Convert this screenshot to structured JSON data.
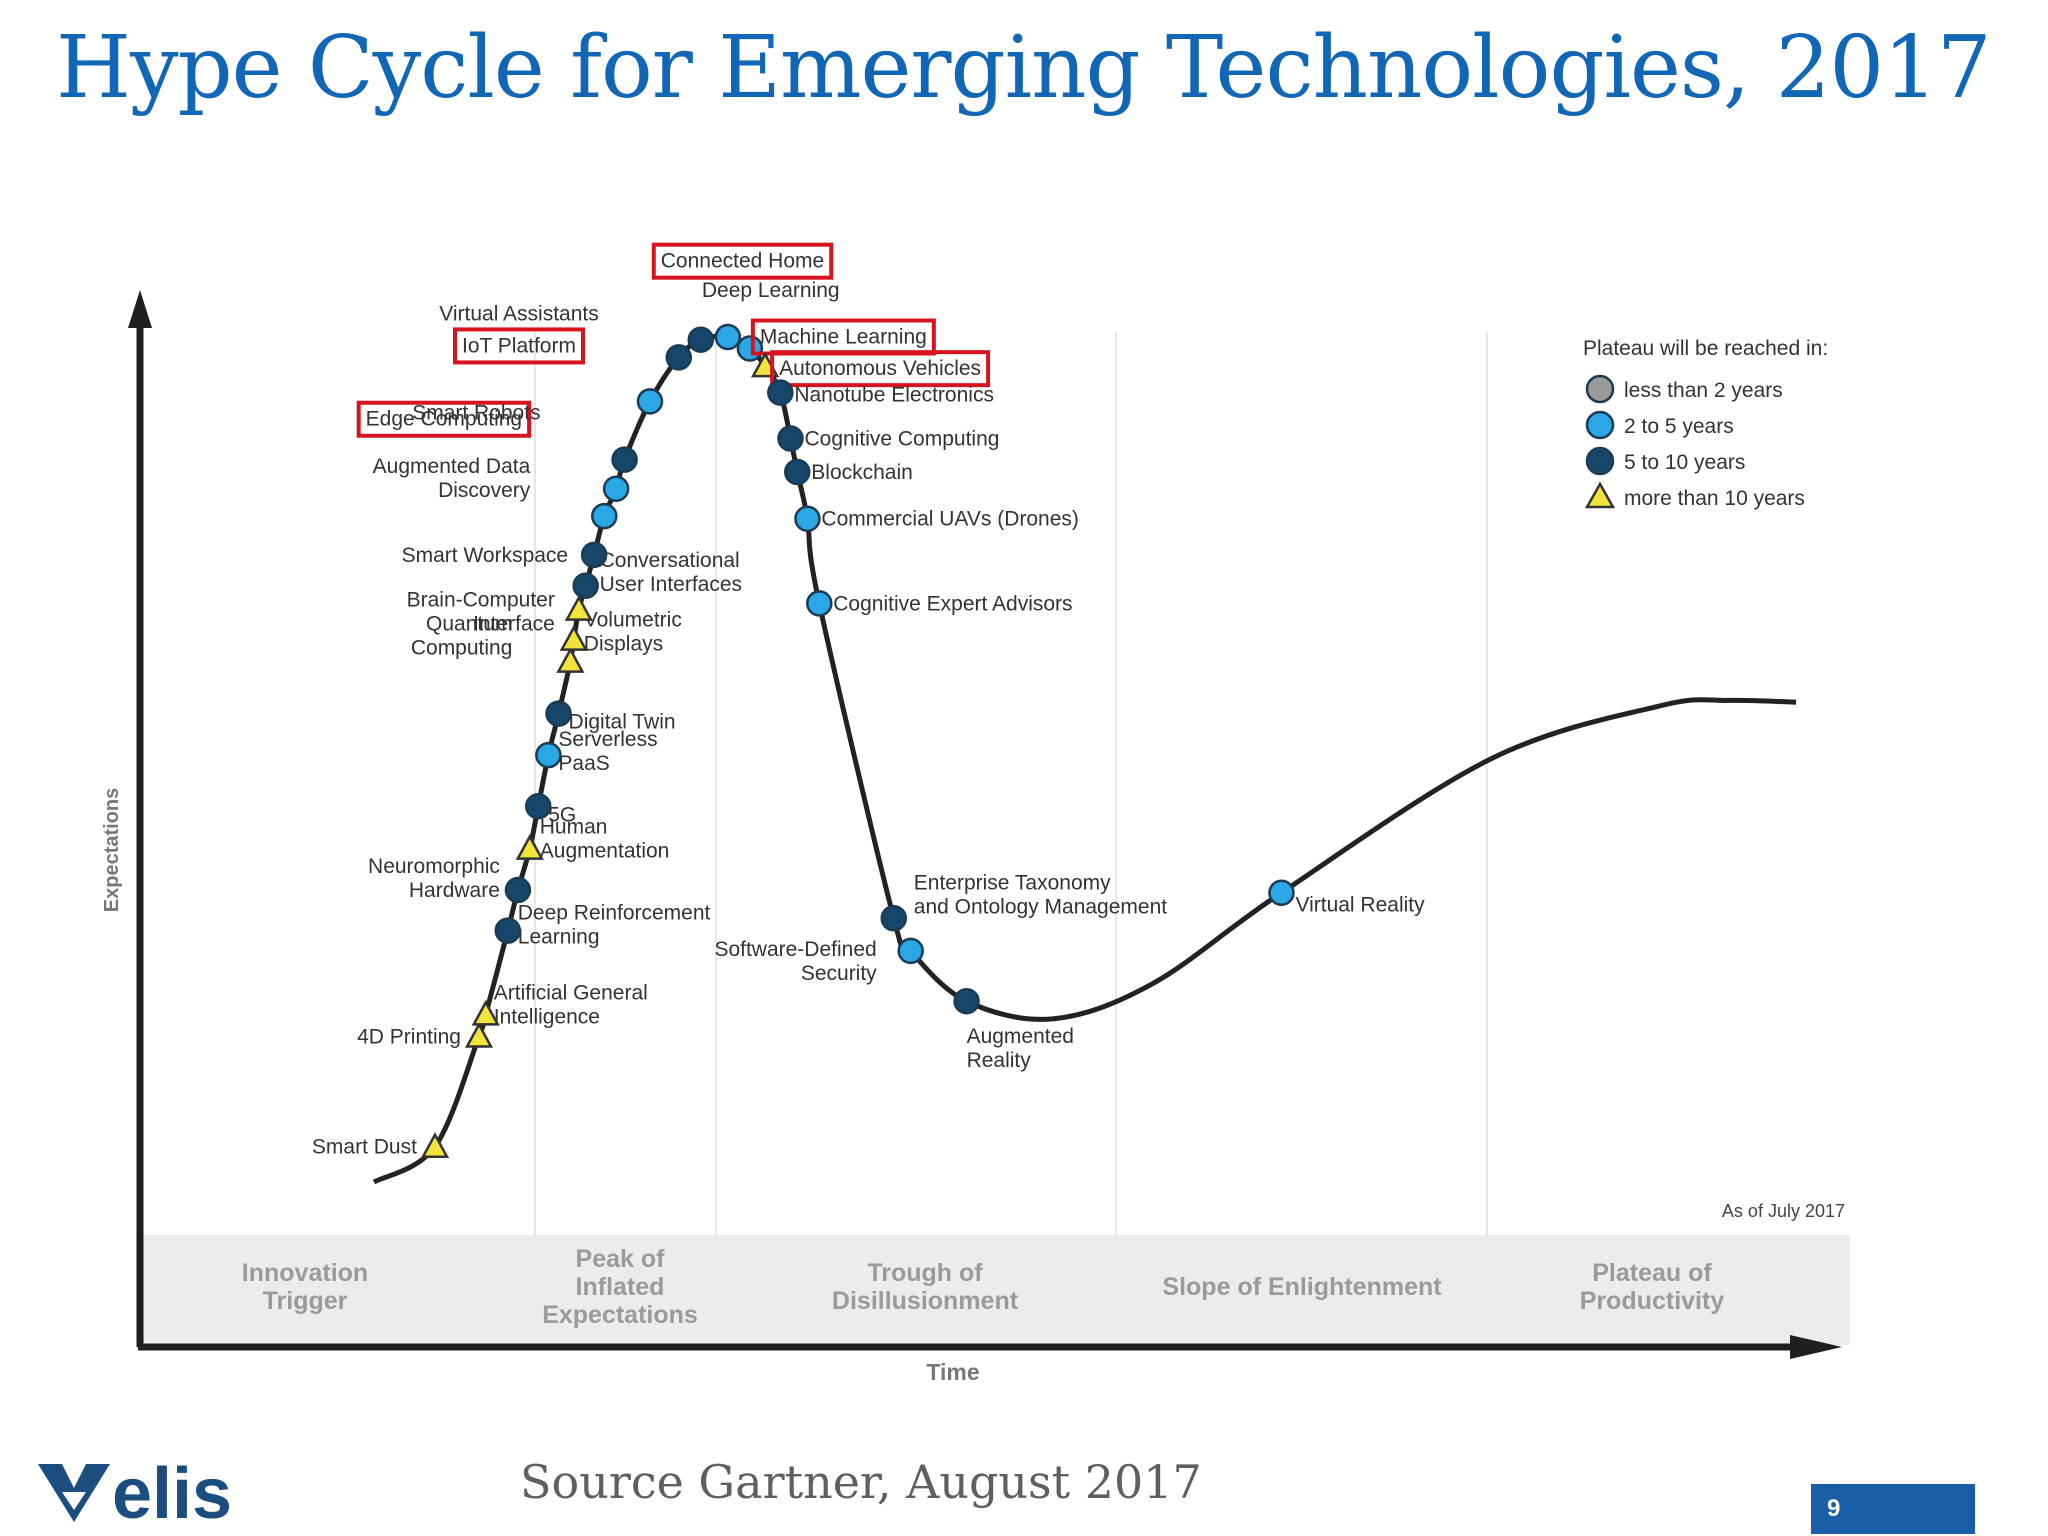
{
  "slide_title": "Hype Cycle for Emerging Technologies, 2017",
  "source_note": "Source Gartner, August 2017",
  "page_number": "9",
  "logo_text": "elis",
  "colors": {
    "title": "#1166b5",
    "highlight_box": "#d7141d",
    "lt2": "#9b9b9b",
    "y2to5": "#2ba7e6",
    "y5to10": "#16476b",
    "gt10": "#f3e43c"
  },
  "chart_data": {
    "type": "scatter",
    "xlabel": "Time",
    "ylabel": "Expectations",
    "note": "As of July 2017",
    "phases": [
      [
        "Innovation",
        "Trigger"
      ],
      [
        "Peak of",
        "Inflated",
        "Expectations"
      ],
      [
        "Trough of",
        "Disillusionment"
      ],
      [
        "Slope of Enlightenment"
      ],
      [
        "Plateau of",
        "Productivity"
      ]
    ],
    "legend": {
      "title": "Plateau will be reached in:",
      "items": [
        {
          "key": "lt2",
          "label": "less than 2 years"
        },
        {
          "key": "y2to5",
          "label": "2 to 5 years"
        },
        {
          "key": "y5to10",
          "label": "5 to 10 years"
        },
        {
          "key": "gt10",
          "label": "more than 10 years"
        }
      ]
    },
    "technologies": [
      {
        "name": "Smart Dust",
        "label_lines": [
          "Smart Dust"
        ],
        "x": 0.176,
        "y": 0.04,
        "category": "gt10"
      },
      {
        "name": "4D Printing",
        "label_lines": [
          "4D Printing"
        ],
        "x": 0.202,
        "y": 0.165,
        "category": "gt10"
      },
      {
        "name": "Artificial General Intelligence",
        "label_lines": [
          "Artificial General",
          "Intelligence"
        ],
        "x": 0.206,
        "y": 0.19,
        "category": "gt10"
      },
      {
        "name": "Deep Reinforcement Learning",
        "label_lines": [
          "Deep Reinforcement",
          "Learning"
        ],
        "x": 0.219,
        "y": 0.285,
        "category": "y5to10"
      },
      {
        "name": "Neuromorphic Hardware",
        "label_lines": [
          "Neuromorphic",
          "Hardware"
        ],
        "x": 0.225,
        "y": 0.331,
        "category": "y5to10"
      },
      {
        "name": "Human Augmentation",
        "label_lines": [
          "Human",
          "Augmentation"
        ],
        "x": 0.232,
        "y": 0.378,
        "category": "gt10"
      },
      {
        "name": "5G",
        "label_lines": [
          "5G"
        ],
        "x": 0.237,
        "y": 0.426,
        "category": "y5to10"
      },
      {
        "name": "Serverless PaaS",
        "label_lines": [
          "Serverless",
          "PaaS"
        ],
        "x": 0.243,
        "y": 0.484,
        "category": "y2to5"
      },
      {
        "name": "Digital Twin",
        "label_lines": [
          "Digital Twin"
        ],
        "x": 0.249,
        "y": 0.531,
        "category": "y5to10"
      },
      {
        "name": "Quantum Computing",
        "label_lines": [
          "Quantum",
          "Computing"
        ],
        "x": 0.256,
        "y": 0.59,
        "category": "gt10"
      },
      {
        "name": "Volumetric Displays",
        "label_lines": [
          "Volumetric",
          "Displays"
        ],
        "x": 0.258,
        "y": 0.615,
        "category": "gt10"
      },
      {
        "name": "Brain-Computer Interface",
        "label_lines": [
          "Brain-Computer",
          "Interface"
        ],
        "x": 0.261,
        "y": 0.649,
        "category": "gt10"
      },
      {
        "name": "Conversational User Interfaces",
        "label_lines": [
          "Conversational",
          "User Interfaces"
        ],
        "x": 0.265,
        "y": 0.676,
        "category": "y5to10"
      },
      {
        "name": "Smart Workspace",
        "label_lines": [
          "Smart Workspace"
        ],
        "x": 0.27,
        "y": 0.711,
        "category": "y5to10"
      },
      {
        "name": "Augmented Data Discovery",
        "label_lines": [
          "Augmented Data",
          "Discovery"
        ],
        "x": 0.276,
        "y": 0.755,
        "category": "y2to5"
      },
      {
        "name": "Edge Computing",
        "label_lines": [
          "Edge Computing"
        ],
        "x": 0.283,
        "y": 0.786,
        "category": "y2to5",
        "highlighted": true
      },
      {
        "name": "Smart Robots",
        "label_lines": [
          "Smart Robots"
        ],
        "x": 0.288,
        "y": 0.819,
        "category": "y5to10"
      },
      {
        "name": "IoT Platform",
        "label_lines": [
          "IoT Platform"
        ],
        "x": 0.303,
        "y": 0.885,
        "category": "y2to5",
        "highlighted": true
      },
      {
        "name": "Virtual Assistants",
        "label_lines": [
          "Virtual Assistants"
        ],
        "x": 0.32,
        "y": 0.935,
        "category": "y5to10"
      },
      {
        "name": "Connected Home",
        "label_lines": [
          "Connected Home"
        ],
        "x": 0.333,
        "y": 0.955,
        "category": "y5to10",
        "highlighted": true
      },
      {
        "name": "Deep Learning",
        "label_lines": [
          "Deep Learning"
        ],
        "x": 0.349,
        "y": 0.958,
        "category": "y2to5"
      },
      {
        "name": "Machine Learning",
        "label_lines": [
          "Machine Learning"
        ],
        "x": 0.362,
        "y": 0.945,
        "category": "y2to5",
        "highlighted": true
      },
      {
        "name": "Autonomous Vehicles",
        "label_lines": [
          "Autonomous Vehicles"
        ],
        "x": 0.371,
        "y": 0.925,
        "category": "gt10",
        "highlighted": true
      },
      {
        "name": "Nanotube Electronics",
        "label_lines": [
          "Nanotube Electronics"
        ],
        "x": 0.38,
        "y": 0.895,
        "category": "y5to10"
      },
      {
        "name": "Cognitive Computing",
        "label_lines": [
          "Cognitive Computing"
        ],
        "x": 0.386,
        "y": 0.843,
        "category": "y5to10"
      },
      {
        "name": "Blockchain",
        "label_lines": [
          "Blockchain"
        ],
        "x": 0.39,
        "y": 0.805,
        "category": "y5to10"
      },
      {
        "name": "Commercial UAVs (Drones)",
        "label_lines": [
          "Commercial UAVs (Drones)"
        ],
        "x": 0.396,
        "y": 0.752,
        "category": "y2to5"
      },
      {
        "name": "Cognitive Expert Advisors",
        "label_lines": [
          "Cognitive Expert Advisors"
        ],
        "x": 0.403,
        "y": 0.656,
        "category": "y2to5"
      },
      {
        "name": "Enterprise Taxonomy and Ontology Management",
        "label_lines": [
          "Enterprise Taxonomy",
          "and Ontology Management"
        ],
        "x": 0.447,
        "y": 0.299,
        "category": "y5to10"
      },
      {
        "name": "Software-Defined Security",
        "label_lines": [
          "Software-Defined",
          "Security"
        ],
        "x": 0.457,
        "y": 0.262,
        "category": "y2to5"
      },
      {
        "name": "Augmented Reality",
        "label_lines": [
          "Augmented",
          "Reality"
        ],
        "x": 0.49,
        "y": 0.205,
        "category": "y5to10"
      },
      {
        "name": "Virtual Reality",
        "label_lines": [
          "Virtual Reality"
        ],
        "x": 0.676,
        "y": 0.328,
        "category": "y2to5"
      }
    ]
  }
}
